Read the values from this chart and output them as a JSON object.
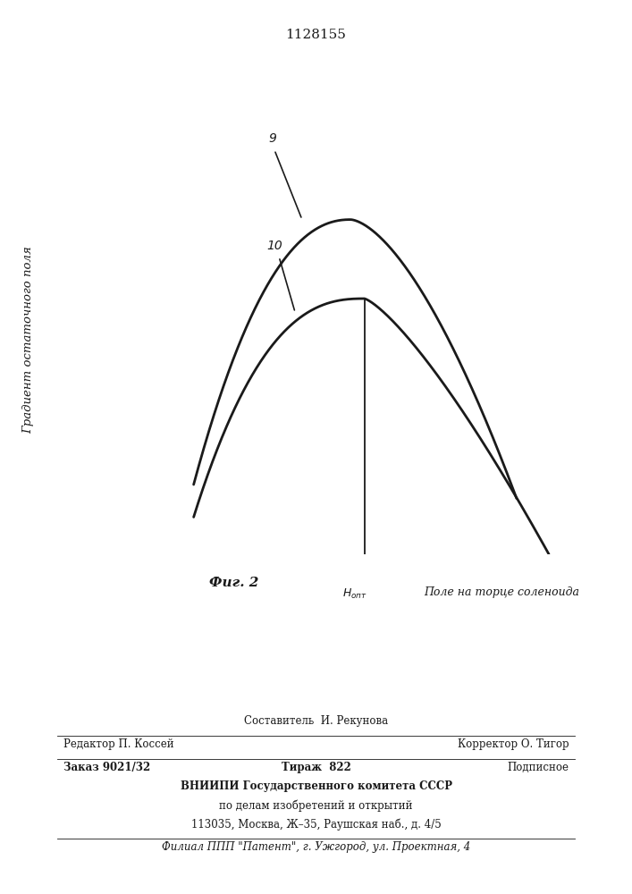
{
  "title": "1128155",
  "title_fontsize": 11,
  "background_color": "#ffffff",
  "line_color": "#1a1a1a",
  "curve9_label": "9",
  "curve10_label": "10",
  "footer_line1": "Составитель  И. Рекунова",
  "footer_line2_left": "Редактор П. Коссей",
  "footer_line2_right": "Корректор О. Тигор",
  "footer_line3_left": "Заказ 9021/32",
  "footer_line3_center": "Тираж  822",
  "footer_line3_right": "Подписное",
  "footer_line4": "ВНИИПИ Государственного комитета СССР",
  "footer_line5": "по делам изобретений и открытий",
  "footer_line6": "113035, Москва, Ж–35, Раушская наб., д. 4/5",
  "footer_line7": "Филиал ППП \"Патент\", г. Ужгород, ул. Проектная, 4"
}
